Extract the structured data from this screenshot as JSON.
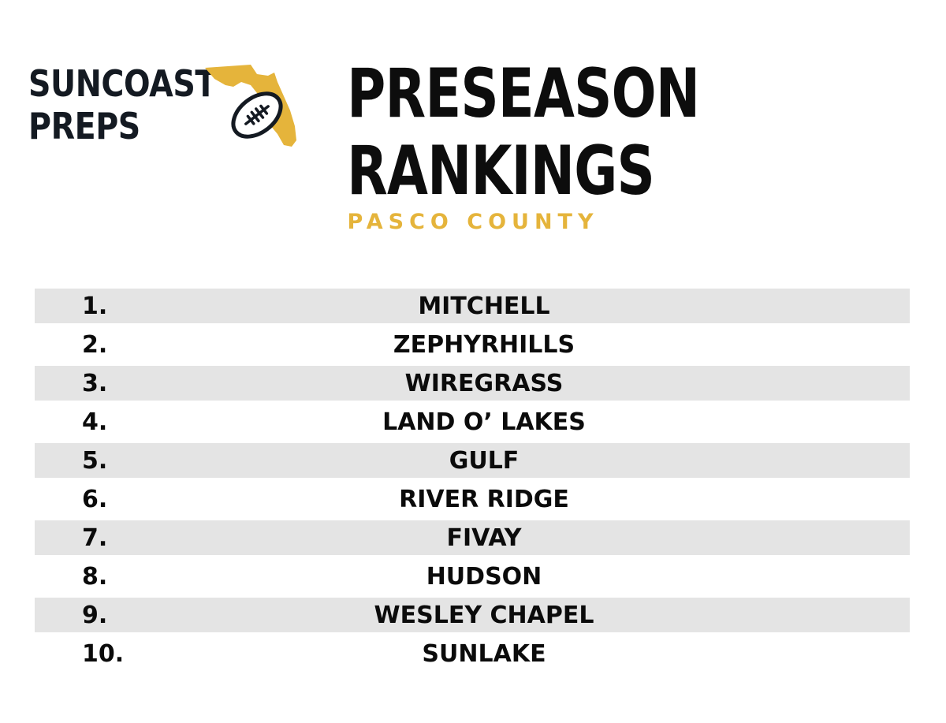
{
  "logo": {
    "line1": "SUNCOAST",
    "line2": "PREPS",
    "art_icon": "florida-football-icon",
    "text_color": "#141a22",
    "accent_color": "#e5b43b"
  },
  "headline": {
    "line1": "PRESEASON",
    "line2": "RANKINGS"
  },
  "subhead": "PASCO COUNTY",
  "rankings": [
    {
      "rank": "1.",
      "team": "MITCHELL"
    },
    {
      "rank": "2.",
      "team": "ZEPHYRHILLS"
    },
    {
      "rank": "3.",
      "team": "WIREGRASS"
    },
    {
      "rank": "4.",
      "team": "LAND O’ LAKES"
    },
    {
      "rank": "5.",
      "team": "GULF"
    },
    {
      "rank": "6.",
      "team": "RIVER RIDGE"
    },
    {
      "rank": "7.",
      "team": "FIVAY"
    },
    {
      "rank": "8.",
      "team": "HUDSON"
    },
    {
      "rank": "9.",
      "team": "WESLEY CHAPEL"
    },
    {
      "rank": "10.",
      "team": "SUNLAKE"
    }
  ],
  "colors": {
    "row_shade": "#e4e4e4",
    "gold": "#e5b43b"
  }
}
